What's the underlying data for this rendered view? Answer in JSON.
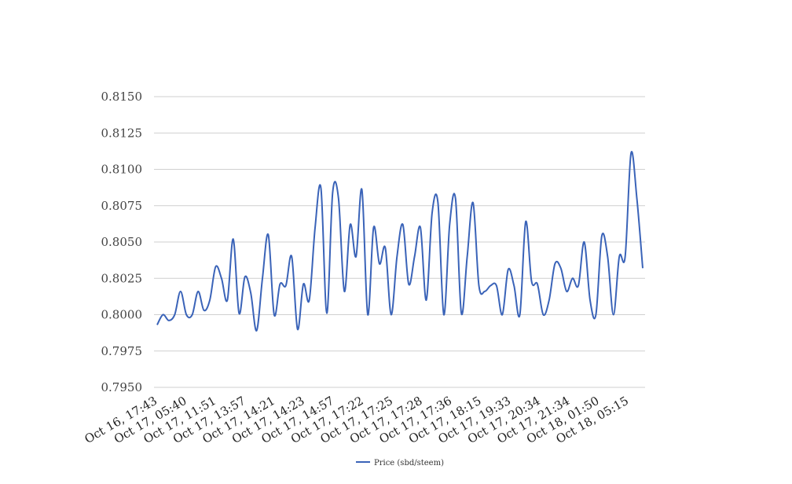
{
  "chart_data": {
    "type": "line",
    "title": "",
    "xlabel": "",
    "ylabel": "",
    "ylim": [
      0.795,
      0.815
    ],
    "yticks": [
      0.795,
      0.7975,
      0.8,
      0.8025,
      0.805,
      0.8075,
      0.81,
      0.8125,
      0.815
    ],
    "ytick_labels": [
      "0.7950",
      "0.7975",
      "0.8000",
      "0.8025",
      "0.8050",
      "0.8075",
      "0.8100",
      "0.8125",
      "0.8150"
    ],
    "xtick_labels": [
      "Oct 16, 17:43",
      "Oct 17, 05:40",
      "Oct 17, 11:51",
      "Oct 17, 13:57",
      "Oct 17, 14:21",
      "Oct 17, 14:23",
      "Oct 17, 14:57",
      "Oct 17, 17:22",
      "Oct 17, 17:25",
      "Oct 17, 17:28",
      "Oct 17, 17:36",
      "Oct 17, 18:15",
      "Oct 17, 19:33",
      "Oct 17, 20:34",
      "Oct 17, 21:34",
      "Oct 18, 01:50",
      "Oct 18, 05:15"
    ],
    "grid": true,
    "legend_position": "bottom",
    "series": [
      {
        "name": "Price (sbd/steem)",
        "color": "#3a63b8",
        "values": [
          0.7993,
          0.8,
          0.7996,
          0.8,
          0.8016,
          0.8,
          0.8,
          0.8016,
          0.8003,
          0.801,
          0.8033,
          0.8025,
          0.801,
          0.8052,
          0.8001,
          0.8026,
          0.8015,
          0.7989,
          0.8025,
          0.8055,
          0.8,
          0.8021,
          0.802,
          0.804,
          0.799,
          0.8021,
          0.801,
          0.806,
          0.8087,
          0.8001,
          0.8084,
          0.808,
          0.8016,
          0.8062,
          0.804,
          0.8086,
          0.8,
          0.806,
          0.8035,
          0.8046,
          0.8,
          0.804,
          0.8062,
          0.8021,
          0.804,
          0.806,
          0.801,
          0.807,
          0.8077,
          0.8,
          0.8062,
          0.808,
          0.8001,
          0.804,
          0.8077,
          0.802,
          0.8016,
          0.802,
          0.802,
          0.8,
          0.8031,
          0.802,
          0.8,
          0.8064,
          0.8023,
          0.8021,
          0.8,
          0.801,
          0.8035,
          0.8032,
          0.8016,
          0.8025,
          0.802,
          0.805,
          0.801,
          0.8,
          0.8054,
          0.804,
          0.8,
          0.804,
          0.804,
          0.8111,
          0.808,
          0.8032
        ]
      }
    ]
  }
}
